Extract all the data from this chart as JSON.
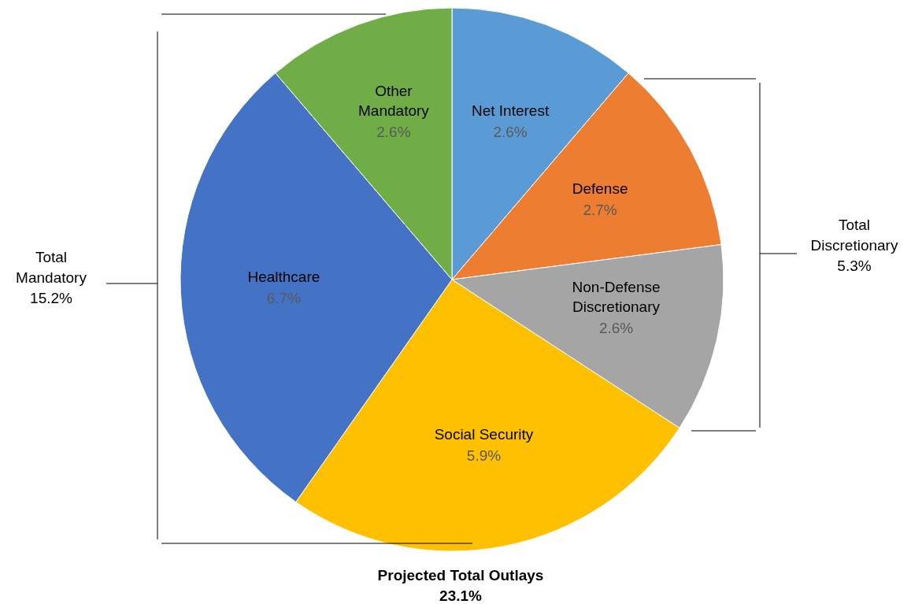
{
  "chart_data": {
    "type": "pie",
    "categories": [
      "Net Interest",
      "Defense",
      "Non-Defense Discretionary",
      "Social Security",
      "Healthcare",
      "Other Mandatory"
    ],
    "values": [
      2.6,
      2.7,
      2.6,
      5.9,
      6.7,
      2.6
    ],
    "colors": [
      "#5b9bd5",
      "#ed7d31",
      "#a5a5a5",
      "#ffc000",
      "#4472c4",
      "#70ad47"
    ],
    "value_labels": [
      "2.6%",
      "2.7%",
      "2.6%",
      "5.9%",
      "6.7%",
      "2.6%"
    ],
    "annotations": [
      "Total\nMandatory\n15.2%",
      "Total\nDiscretionary\n5.3%",
      "Projected Total Outlays\n23.1%"
    ]
  }
}
